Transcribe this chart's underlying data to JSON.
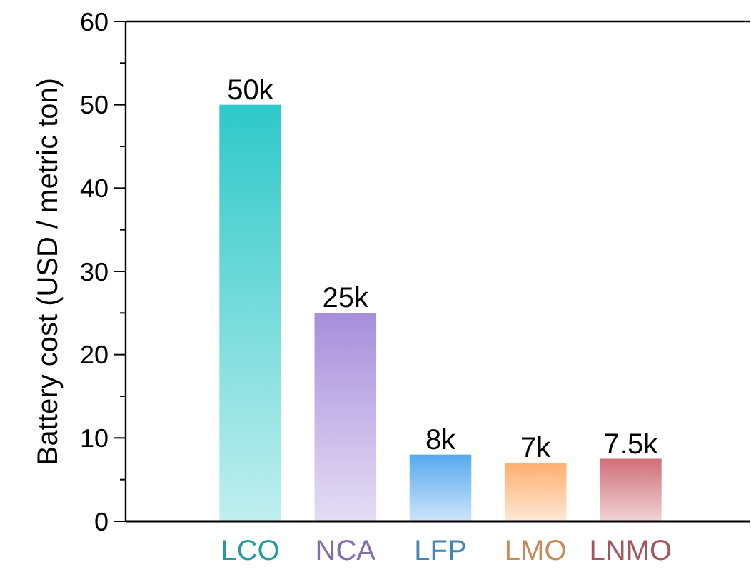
{
  "chart_data": {
    "type": "bar",
    "ylabel": "Battery cost (USD / metric ton)",
    "categories": [
      "LCO",
      "NCA",
      "LFP",
      "LMO",
      "LNMO"
    ],
    "values": [
      50,
      25,
      8,
      7,
      7.5
    ],
    "value_labels": [
      "50k",
      "25k",
      "8k",
      "7k",
      "7.5k"
    ],
    "colors": [
      "#2ec8c8",
      "#a78fdc",
      "#56a9ee",
      "#ffb070",
      "#d06e78"
    ],
    "ylim": [
      0,
      60
    ],
    "yticks": [
      0,
      10,
      20,
      30,
      40,
      50,
      60
    ],
    "grid": false
  }
}
